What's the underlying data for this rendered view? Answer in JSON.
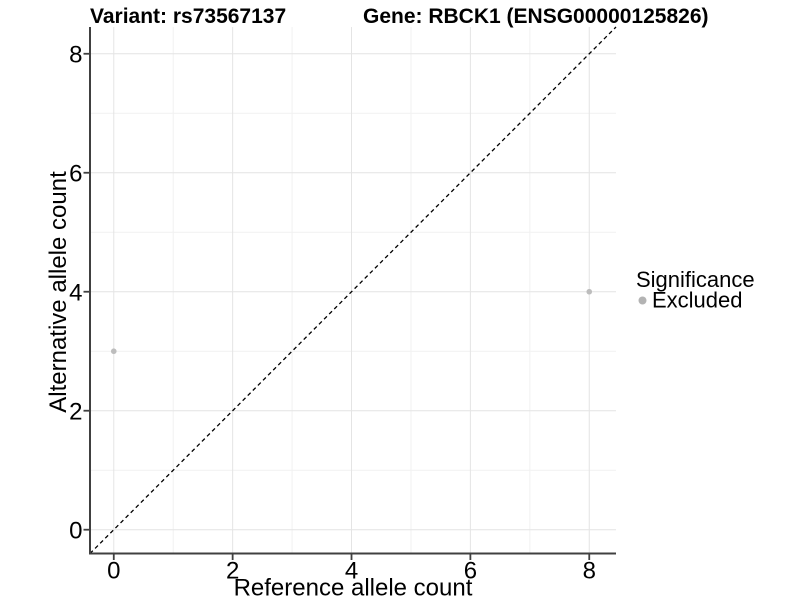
{
  "titles": {
    "left": "Variant: rs73567137",
    "right": "Gene: RBCK1 (ENSG00000125826)"
  },
  "chart_data": {
    "type": "scatter",
    "xlabel": "Reference allele count",
    "ylabel": "Alternative allele count",
    "xlim": [
      -0.4,
      8.45
    ],
    "ylim": [
      -0.4,
      8.45
    ],
    "x_ticks": [
      0,
      2,
      4,
      6,
      8
    ],
    "y_ticks": [
      0,
      2,
      4,
      6,
      8
    ],
    "x_minor_ticks": [
      1,
      3,
      5,
      7
    ],
    "y_minor_ticks": [
      1,
      3,
      5,
      7
    ],
    "grid": "major+minor",
    "series": [
      {
        "name": "Excluded",
        "color": "#bdbdbd",
        "point_radius": 2.8,
        "points": [
          [
            0,
            3
          ],
          [
            8,
            4
          ]
        ]
      }
    ],
    "reference_line": {
      "slope": 1,
      "intercept": 0,
      "style": "dashed",
      "color": "#000000"
    },
    "legend": {
      "title": "Significance",
      "position": "right",
      "items": [
        {
          "label": "Excluded",
          "color": "#b3b3b3"
        }
      ]
    }
  },
  "colors": {
    "background": "#ffffff",
    "grid_major": "#e4e4e4",
    "grid_minor": "#f1f1f1",
    "axis_line": "#404040",
    "tick_mark": "#404040",
    "text": "#000000"
  }
}
